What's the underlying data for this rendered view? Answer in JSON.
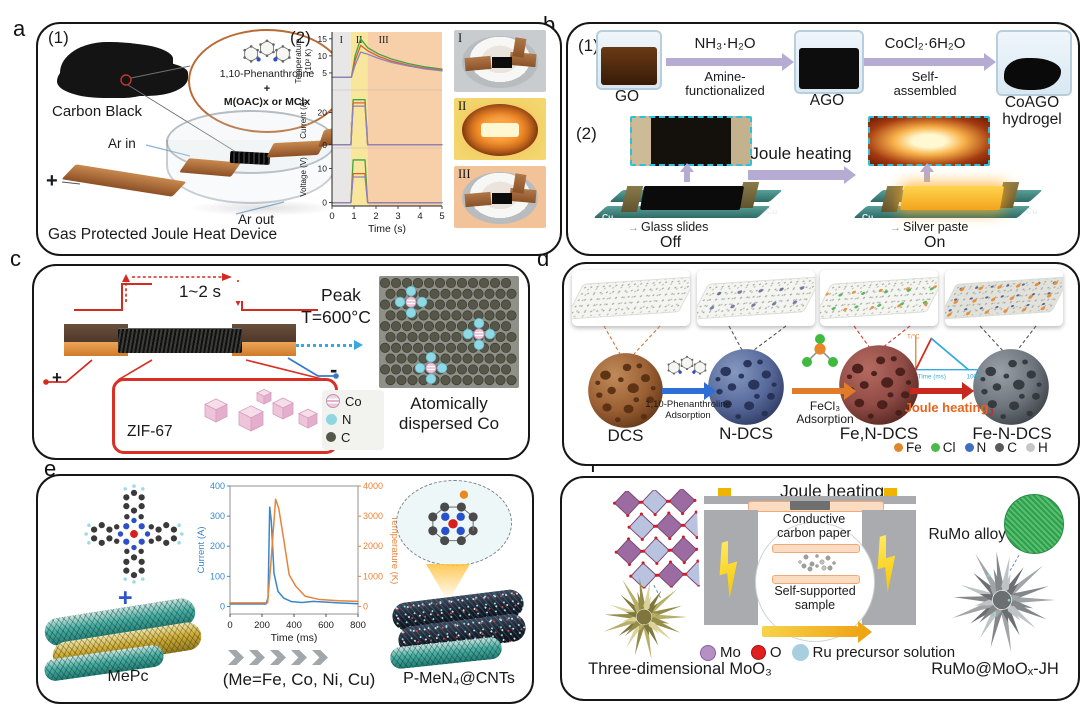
{
  "figure": {
    "background": "#ffffff"
  },
  "icons": {
    "pointer": "→"
  },
  "panel_a": {
    "letter": "a",
    "step1": "(1)",
    "step2": "(2)",
    "carbon_black": "Carbon Black",
    "phenanthroline": "1,10-Phenanthroline",
    "plus_symbol": "+",
    "metal_salt": "M(OAC)x or MClx",
    "ar_in": "Ar in",
    "ar_out": "Ar out",
    "electrode_plus": "+",
    "electrode_minus": "-",
    "caption": "Gas Protected Joule Heat Device",
    "photos": [
      "I",
      "II",
      "III"
    ]
  },
  "panel_b": {
    "letter": "b",
    "step1": "(1)",
    "step2": "(2)",
    "go_label": "GO",
    "ago_label": "AGO",
    "coago_line1": "CoAGO",
    "coago_line2": "hydrogel",
    "arrow1_top": "NH₃·H₂O",
    "arrow1_bottom1": "Amine-",
    "arrow1_bottom2": "functionalized",
    "arrow2_top": "CoCl₂·6H₂O",
    "arrow2_bottom1": "Self-",
    "arrow2_bottom2": "assembled",
    "joule_heating": "Joule heating",
    "glass_slides": "Glass slides",
    "silver_paste": "Silver paste",
    "cu_label": "Cu",
    "off_label": "Off",
    "on_label": "On"
  },
  "panel_c": {
    "letter": "c",
    "pulse_duration": "1~2 s",
    "peak_line1": "Peak",
    "peak_line2": "T=600°C",
    "zif_label": "ZIF-67",
    "electrode_plus": "+",
    "electrode_minus": "-",
    "legend": [
      {
        "label": "Co",
        "color": "#eac6d9"
      },
      {
        "label": "N",
        "color": "#8fd6e2"
      },
      {
        "label": "C",
        "color": "#55564a"
      }
    ],
    "result_line1": "Atomically",
    "result_line2": "dispersed Co"
  },
  "panel_d": {
    "letter": "d",
    "stages": [
      "DCS",
      "N-DCS",
      "Fe,N-DCS",
      "Fe-N-DCS"
    ],
    "arrow1_line1": "1,10-Phenanthroline",
    "arrow1_line2": "Adsorption",
    "arrow2_line1": "FeCl₃",
    "arrow2_line2": "Adsorption",
    "arrow3_label": "Joule heating",
    "arrow3_sub": "J",
    "legend": [
      {
        "label": "Fe",
        "color": "#e0862c"
      },
      {
        "label": "Cl",
        "color": "#4fb84a"
      },
      {
        "label": "N",
        "color": "#3f6fbe"
      },
      {
        "label": "C",
        "color": "#5a5a5a"
      },
      {
        "label": "H",
        "color": "#c6c6c6"
      }
    ]
  },
  "panel_e": {
    "letter": "e",
    "mepc_label": "MePc",
    "plus_symbol": "+",
    "metals_label": "(Me=Fe, Co, Ni, Cu)",
    "product_label": "P-MeN₄@CNTs"
  },
  "panel_f": {
    "letter": "f",
    "joule_heating": "Joule heating",
    "carbon_paper_line1": "Conductive",
    "carbon_paper_line2": "carbon paper",
    "sample_line1": "Self-supported",
    "sample_line2": "sample",
    "rumo_alloy": "RuMo alloy",
    "moo3_label": "Three-dimensional MoO₃",
    "product_label": "RuMo@MoOₓ-JH",
    "legend": [
      {
        "label": "Mo",
        "color": "#b490c4"
      },
      {
        "label": "O",
        "color": "#e02020"
      },
      {
        "label": "Ru precursor solution",
        "color": "#a8cfe0"
      }
    ]
  },
  "chart_data": [
    {
      "id": "panel-a-graph",
      "kind": "stacked",
      "type": "line",
      "xlabel": "Time (s)",
      "xlim": [
        0,
        5
      ],
      "xticks": [
        0,
        1,
        2,
        3,
        4,
        5
      ],
      "series_colors": [
        "#3da44b",
        "#da5f2e",
        "#8b82c2"
      ],
      "regions": [
        {
          "label": "I",
          "x0": 0,
          "x1": 0.85,
          "color": "#e8e7e5"
        },
        {
          "label": "II",
          "x0": 0.85,
          "x1": 1.62,
          "color": "#f9e69d"
        },
        {
          "label": "III",
          "x0": 1.62,
          "x1": 5,
          "color": "#f7cfa8"
        }
      ],
      "subplots": [
        {
          "ylabel": [
            "Temperature",
            "(10² K)"
          ],
          "ylim": [
            0,
            17
          ],
          "yticks": [
            5,
            10,
            15
          ],
          "series": [
            {
              "x": [
                0,
                0.88,
                1.05,
                1.3,
                1.62,
                2.1,
                2.7,
                3.5,
                4.2,
                5
              ],
              "y": [
                3.7,
                3.7,
                10,
                15,
                12.4,
                10.6,
                9.1,
                7.7,
                6.8,
                6.1
              ]
            },
            {
              "x": [
                0,
                0.88,
                1.05,
                1.3,
                1.62,
                2.1,
                2.7,
                3.5,
                4.2,
                5
              ],
              "y": [
                3.7,
                3.7,
                8.6,
                13.1,
                11.5,
                9.9,
                8.5,
                7.2,
                6.4,
                5.8
              ]
            },
            {
              "x": [
                0,
                0.88,
                1.05,
                1.3,
                1.62,
                2.1,
                2.7,
                3.5,
                4.2,
                5
              ],
              "y": [
                3.7,
                3.7,
                7.3,
                11.1,
                10.5,
                9.3,
                8.1,
                7.0,
                6.2,
                5.6
              ]
            }
          ]
        },
        {
          "ylabel": [
            "Current (A)"
          ],
          "ylim": [
            -2,
            34
          ],
          "yticks": [
            0,
            20
          ],
          "series": [
            {
              "x": [
                0,
                0.86,
                0.96,
                1.5,
                1.62,
                5
              ],
              "y": [
                0,
                0,
                28,
                28,
                0,
                0
              ]
            },
            {
              "x": [
                0,
                0.86,
                0.96,
                1.5,
                1.62,
                5
              ],
              "y": [
                0,
                0,
                26,
                26,
                0,
                0
              ]
            },
            {
              "x": [
                0,
                0.86,
                0.96,
                1.5,
                1.62,
                5
              ],
              "y": [
                0,
                0,
                24,
                24,
                0,
                0
              ]
            }
          ]
        },
        {
          "ylabel": [
            "Voltage (V)"
          ],
          "ylim": [
            -1,
            16
          ],
          "yticks": [
            0,
            10
          ],
          "series": [
            {
              "x": [
                0,
                0.86,
                0.96,
                1.5,
                1.62,
                5
              ],
              "y": [
                0,
                0,
                12.5,
                12.5,
                0,
                0
              ]
            },
            {
              "x": [
                0,
                0.86,
                0.96,
                1.5,
                1.62,
                5
              ],
              "y": [
                0,
                0,
                8.5,
                8.5,
                0,
                0
              ]
            },
            {
              "x": [
                0,
                0.86,
                0.96,
                1.5,
                1.62,
                5
              ],
              "y": [
                0,
                0,
                7.5,
                7.5,
                0,
                0
              ]
            }
          ]
        }
      ]
    },
    {
      "id": "panel-e-graph",
      "kind": "dual",
      "type": "line",
      "xlabel": "Time (ms)",
      "xlim": [
        0,
        800
      ],
      "xticks": [
        0,
        200,
        400,
        600,
        800
      ],
      "left": {
        "label": "Current (A)",
        "color": "#3a87c8",
        "ylim": [
          -25,
          400
        ],
        "yticks": [
          0,
          100,
          200,
          300,
          400
        ]
      },
      "right": {
        "label": "Temperature (K)",
        "color": "#e8833a",
        "ylim": [
          -250,
          4000
        ],
        "yticks": [
          0,
          1000,
          2000,
          3000,
          4000
        ]
      },
      "series": [
        {
          "name": "Current",
          "axis": "left",
          "color": "#3a87c8",
          "x": [
            0,
            225,
            238,
            248,
            258,
            275,
            300,
            335,
            385,
            450,
            520,
            680,
            800
          ],
          "y": [
            8,
            8,
            30,
            330,
            285,
            110,
            50,
            28,
            16,
            13,
            17,
            12,
            9
          ]
        },
        {
          "name": "Temperature",
          "axis": "right",
          "color": "#e8833a",
          "x": [
            0,
            235,
            255,
            285,
            305,
            335,
            370,
            410,
            470,
            560,
            680,
            800
          ],
          "y": [
            120,
            120,
            1400,
            3560,
            3250,
            2250,
            1050,
            680,
            340,
            230,
            190,
            170
          ]
        }
      ]
    },
    {
      "id": "panel-d-inset",
      "kind": "mini",
      "type": "line",
      "ylabel": "T/°C",
      "xlabel": "Time (ms)",
      "xmax_label": "1000",
      "rise_color": "#d42a20",
      "fall_color": "#35aae0"
    }
  ]
}
